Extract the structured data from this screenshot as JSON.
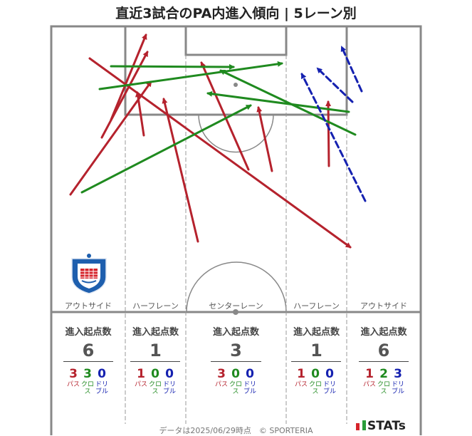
{
  "title": "直近3試合のPA内進入傾向 | 5レーン別",
  "colors": {
    "pass": "#b5222d",
    "cross": "#1f8a1f",
    "dribble": "#1521b0",
    "lines": "#888888"
  },
  "lanes": [
    {
      "label": "アウトサイド",
      "stat_header": "進入起点数",
      "total": "6",
      "pass": "3",
      "cross": "3",
      "dribble": "0"
    },
    {
      "label": "ハーフレーン",
      "stat_header": "進入起点数",
      "total": "1",
      "pass": "1",
      "cross": "0",
      "dribble": "0"
    },
    {
      "label": "センターレーン",
      "stat_header": "進入起点数",
      "total": "3",
      "pass": "3",
      "cross": "0",
      "dribble": "0"
    },
    {
      "label": "ハーフレーン",
      "stat_header": "進入起点数",
      "total": "1",
      "pass": "1",
      "cross": "0",
      "dribble": "0"
    },
    {
      "label": "アウトサイド",
      "stat_header": "進入起点数",
      "total": "6",
      "pass": "1",
      "cross": "2",
      "dribble": "3"
    }
  ],
  "legend": {
    "pass": "パス",
    "cross": "クロス",
    "dribble": "ドリブル"
  },
  "footer": "データは2025/06/29時点　© SPORTERIA",
  "brand": "STATs",
  "club_crest_icon": "vfk-crest-icon"
}
